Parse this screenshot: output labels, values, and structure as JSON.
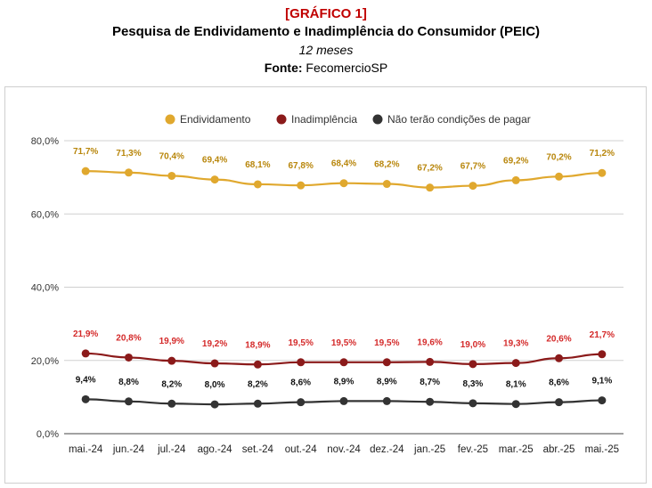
{
  "header": {
    "tag": "[GRÁFICO 1]",
    "title": "Pesquisa de Endividamento e Inadimplência do Consumidor (PEIC)",
    "subtitle": "12 meses",
    "source_label": "Fonte:",
    "source_value": "FecomercioSP"
  },
  "chart_data": {
    "type": "line",
    "title": "",
    "xlabel": "",
    "ylabel": "",
    "ylim": [
      0,
      80
    ],
    "yticks": [
      "0,0%",
      "20,0%",
      "40,0%",
      "60,0%",
      "80,0%"
    ],
    "grid": true,
    "legend_position": "top",
    "categories": [
      "mai.-24",
      "jun.-24",
      "jul.-24",
      "ago.-24",
      "set.-24",
      "out.-24",
      "nov.-24",
      "dez.-24",
      "jan.-25",
      "fev.-25",
      "mar.-25",
      "abr.-25",
      "mai.-25"
    ],
    "series": [
      {
        "name": "Endividamento",
        "color": "#e0a82e",
        "label_color": "#b8860b",
        "values": [
          71.7,
          71.3,
          70.4,
          69.4,
          68.1,
          67.8,
          68.4,
          68.2,
          67.2,
          67.7,
          69.2,
          70.2,
          71.2
        ],
        "labels": [
          "71,7%",
          "71,3%",
          "70,4%",
          "69,4%",
          "68,1%",
          "67,8%",
          "68,4%",
          "68,2%",
          "67,2%",
          "67,7%",
          "69,2%",
          "70,2%",
          "71,2%"
        ]
      },
      {
        "name": "Inadimplência",
        "color": "#8b1a1a",
        "label_color": "#d42a2a",
        "values": [
          21.9,
          20.8,
          19.9,
          19.2,
          18.9,
          19.5,
          19.5,
          19.5,
          19.6,
          19.0,
          19.3,
          20.6,
          21.7
        ],
        "labels": [
          "21,9%",
          "20,8%",
          "19,9%",
          "19,2%",
          "18,9%",
          "19,5%",
          "19,5%",
          "19,5%",
          "19,6%",
          "19,0%",
          "19,3%",
          "20,6%",
          "21,7%"
        ]
      },
      {
        "name": "Não terão condições de pagar",
        "color": "#333333",
        "label_color": "#111111",
        "values": [
          9.4,
          8.8,
          8.2,
          8.0,
          8.2,
          8.6,
          8.9,
          8.9,
          8.7,
          8.3,
          8.1,
          8.6,
          9.1
        ],
        "labels": [
          "9,4%",
          "8,8%",
          "8,2%",
          "8,0%",
          "8,2%",
          "8,6%",
          "8,9%",
          "8,9%",
          "8,7%",
          "8,3%",
          "8,1%",
          "8,6%",
          "9,1%"
        ]
      }
    ]
  }
}
